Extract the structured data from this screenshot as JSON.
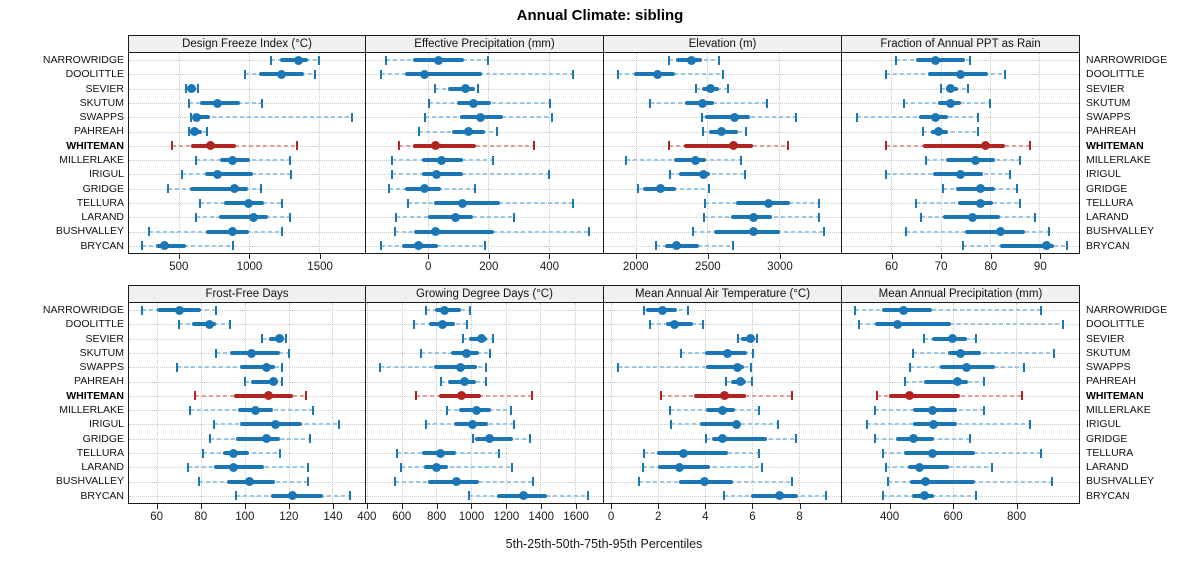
{
  "title": "Annual Climate: sibling",
  "footer": "5th-25th-50th-75th-95th Percentiles",
  "colors": {
    "blue": "#1b76b5",
    "blue_light": "#9ac7e3",
    "red": "#b22422",
    "red_light": "#dda09b",
    "grid": "#c9c9c9",
    "strip_bg": "#f0f0f0",
    "panel_border": "#1a1a1a"
  },
  "sites": [
    "NARROWRIDGE",
    "DOOLITTLE",
    "SEVIER",
    "SKUTUM",
    "SWAPPS",
    "PAHREAH",
    "WHITEMAN",
    "MILLERLAKE",
    "IRIGUL",
    "GRIDGE",
    "TELLURA",
    "LARAND",
    "BUSHVALLEY",
    "BRYCAN"
  ],
  "highlight_site": "WHITEMAN",
  "chart_data": {
    "type": "dotplot-percentiles",
    "percentile_labels": [
      "5th",
      "25th",
      "50th",
      "75th",
      "95th"
    ],
    "legend_note": "thin dashed line = 5th-95th, thick bar = 25th-75th, dot = 50th",
    "panels": [
      {
        "title": "Design Freeze Index (°C)",
        "grid_row": 0,
        "xlim": [
          140,
          1825
        ],
        "ticks": [
          500,
          1000,
          1500
        ],
        "values": {
          "NARROWRIDGE": [
            1155,
            1220,
            1350,
            1420,
            1500
          ],
          "DOOLITTLE": [
            965,
            1070,
            1230,
            1390,
            1470
          ],
          "SEVIER": [
            550,
            565,
            585,
            620,
            635
          ],
          "SKUTUM": [
            570,
            645,
            770,
            930,
            1090
          ],
          "SWAPPS": [
            580,
            610,
            625,
            715,
            1730
          ],
          "PAHREAH": [
            565,
            575,
            605,
            660,
            695
          ],
          "WHITEMAN": [
            445,
            585,
            720,
            905,
            1340
          ],
          "MILLERLAKE": [
            620,
            790,
            880,
            1005,
            1290
          ],
          "IRIGUL": [
            515,
            680,
            775,
            1025,
            1295
          ],
          "GRIDGE": [
            420,
            575,
            895,
            990,
            1080
          ],
          "TELLURA": [
            650,
            815,
            995,
            1105,
            1235
          ],
          "LARAND": [
            615,
            785,
            1030,
            1130,
            1290
          ],
          "BUSHVALLEY": [
            280,
            690,
            880,
            1000,
            1230
          ],
          "BRYCAN": [
            235,
            330,
            390,
            550,
            880
          ]
        }
      },
      {
        "title": "Effective Precipitation (mm)",
        "grid_row": 0,
        "xlim": [
          -205,
          580
        ],
        "ticks": [
          0,
          200,
          400
        ],
        "values": {
          "NARROWRIDGE": [
            -140,
            -50,
            35,
            120,
            200
          ],
          "DOOLITTLE": [
            -155,
            -75,
            -10,
            180,
            480
          ],
          "SEVIER": [
            25,
            65,
            125,
            155,
            165
          ],
          "SKUTUM": [
            5,
            95,
            150,
            210,
            405
          ],
          "SWAPPS": [
            -10,
            105,
            175,
            250,
            410
          ],
          "PAHREAH": [
            -30,
            80,
            135,
            190,
            230
          ],
          "WHITEMAN": [
            -95,
            -50,
            25,
            160,
            350
          ],
          "MILLERLAKE": [
            -120,
            -20,
            45,
            115,
            215
          ],
          "IRIGUL": [
            -120,
            -20,
            30,
            115,
            400
          ],
          "GRIDGE": [
            -130,
            -75,
            -10,
            45,
            155
          ],
          "TELLURA": [
            -65,
            20,
            115,
            240,
            480
          ],
          "LARAND": [
            -105,
            0,
            90,
            150,
            285
          ],
          "BUSHVALLEY": [
            -110,
            -45,
            25,
            220,
            535
          ],
          "BRYCAN": [
            -155,
            -85,
            -30,
            35,
            190
          ]
        }
      },
      {
        "title": "Elevation (m)",
        "grid_row": 0,
        "xlim": [
          1780,
          3430
        ],
        "ticks": [
          2000,
          2500,
          3000
        ],
        "values": {
          "NARROWRIDGE": [
            2230,
            2280,
            2390,
            2465,
            2580
          ],
          "DOOLITTLE": [
            1875,
            1990,
            2150,
            2275,
            2610
          ],
          "SEVIER": [
            2420,
            2465,
            2520,
            2580,
            2645
          ],
          "SKUTUM": [
            2100,
            2345,
            2465,
            2545,
            2915
          ],
          "SWAPPS": [
            2465,
            2485,
            2690,
            2795,
            3115
          ],
          "PAHREAH": [
            2470,
            2510,
            2600,
            2715,
            2770
          ],
          "WHITEMAN": [
            2230,
            2335,
            2680,
            2820,
            3060
          ],
          "MILLERLAKE": [
            1935,
            2270,
            2415,
            2490,
            2735
          ],
          "IRIGUL": [
            2240,
            2305,
            2475,
            2515,
            2760
          ],
          "GRIDGE": [
            2015,
            2050,
            2175,
            2280,
            2510
          ],
          "TELLURA": [
            2485,
            2700,
            2925,
            3075,
            3280
          ],
          "LARAND": [
            2475,
            2665,
            2820,
            2950,
            3275
          ],
          "BUSHVALLEY": [
            2400,
            2545,
            2820,
            3005,
            3315
          ],
          "BRYCAN": [
            2140,
            2205,
            2285,
            2440,
            2680
          ]
        }
      },
      {
        "title": "Fraction of Annual PPT as Rain",
        "grid_row": 0,
        "xlim": [
          50,
          98
        ],
        "ticks": [
          60,
          70,
          80,
          90
        ],
        "values": {
          "NARROWRIDGE": [
            61,
            65,
            69,
            75,
            76
          ],
          "DOOLITTLE": [
            59,
            67.5,
            74,
            79.5,
            83
          ],
          "SEVIER": [
            70,
            71,
            72,
            73.5,
            75.5
          ],
          "SKUTUM": [
            62.5,
            69.5,
            72,
            74,
            80
          ],
          "SWAPPS": [
            53,
            65.5,
            69,
            71.5,
            77.5
          ],
          "PAHREAH": [
            66.5,
            68,
            69.5,
            71.5,
            77.5
          ],
          "WHITEMAN": [
            59,
            66.5,
            79,
            83,
            88
          ],
          "MILLERLAKE": [
            67,
            71,
            77,
            81,
            86
          ],
          "IRIGUL": [
            59,
            68.5,
            74,
            78.5,
            84
          ],
          "GRIDGE": [
            70.5,
            73,
            78,
            81,
            85.5
          ],
          "TELLURA": [
            65,
            73.5,
            78,
            80.5,
            86
          ],
          "LARAND": [
            66,
            70.5,
            76.5,
            82,
            89
          ],
          "BUSHVALLEY": [
            63,
            75,
            82,
            87,
            92
          ],
          "BRYCAN": [
            74.5,
            82,
            91.5,
            93,
            95.5
          ]
        }
      },
      {
        "title": "Frost-Free Days",
        "grid_row": 1,
        "xlim": [
          47,
          155
        ],
        "ticks": [
          60,
          80,
          100,
          120,
          140
        ],
        "values": {
          "NARROWRIDGE": [
            53,
            60,
            70,
            80,
            87
          ],
          "DOOLITTLE": [
            70,
            76,
            84,
            87,
            93
          ],
          "SEVIER": [
            108,
            111,
            116,
            118,
            119
          ],
          "SKUTUM": [
            87,
            93,
            103,
            116,
            120
          ],
          "SWAPPS": [
            69,
            98,
            110,
            114,
            117
          ],
          "PAHREAH": [
            100,
            103,
            113,
            115,
            117
          ],
          "WHITEMAN": [
            77,
            95,
            111,
            122,
            128
          ],
          "MILLERLAKE": [
            75,
            97,
            105,
            113,
            131
          ],
          "IRIGUL": [
            86,
            98,
            114,
            126,
            143
          ],
          "GRIDGE": [
            84,
            96,
            110,
            116,
            130
          ],
          "TELLURA": [
            81,
            90,
            95,
            102,
            116
          ],
          "LARAND": [
            74,
            86,
            95,
            109,
            129
          ],
          "BUSHVALLEY": [
            79,
            92,
            102,
            114,
            129
          ],
          "BRYCAN": [
            96,
            112,
            122,
            136,
            148
          ]
        }
      },
      {
        "title": "Growing Degree Days (°C)",
        "grid_row": 1,
        "xlim": [
          395,
          1760
        ],
        "ticks": [
          400,
          600,
          800,
          1000,
          1200,
          1400,
          1600
        ],
        "values": {
          "NARROWRIDGE": [
            740,
            795,
            850,
            940,
            995
          ],
          "DOOLITTLE": [
            670,
            755,
            835,
            905,
            975
          ],
          "SEVIER": [
            955,
            990,
            1060,
            1090,
            1125
          ],
          "SKUTUM": [
            710,
            885,
            975,
            1045,
            1110
          ],
          "SWAPPS": [
            475,
            785,
            940,
            1035,
            1085
          ],
          "PAHREAH": [
            825,
            870,
            965,
            1030,
            1085
          ],
          "WHITEMAN": [
            685,
            815,
            945,
            1060,
            1350
          ],
          "MILLERLAKE": [
            860,
            930,
            1030,
            1115,
            1230
          ],
          "IRIGUL": [
            740,
            900,
            1010,
            1100,
            1250
          ],
          "GRIDGE": [
            1010,
            1020,
            1105,
            1240,
            1340
          ],
          "TELLURA": [
            575,
            720,
            825,
            915,
            1160
          ],
          "LARAND": [
            595,
            730,
            800,
            865,
            1235
          ],
          "BUSHVALLEY": [
            560,
            750,
            915,
            1045,
            1355
          ],
          "BRYCAN": [
            990,
            1150,
            1300,
            1440,
            1675
          ]
        }
      },
      {
        "title": "Mean Annual Air Temperature (°C)",
        "grid_row": 1,
        "xlim": [
          -0.3,
          9.8
        ],
        "ticks": [
          0,
          2,
          4,
          6,
          8
        ],
        "values": {
          "NARROWRIDGE": [
            1.4,
            1.5,
            2.2,
            2.8,
            3.3
          ],
          "DOOLITTLE": [
            1.65,
            2.35,
            2.7,
            3.5,
            3.9
          ],
          "SEVIER": [
            5.4,
            5.55,
            5.95,
            6.1,
            6.2
          ],
          "SKUTUM": [
            3.0,
            4.0,
            4.95,
            5.8,
            6.05
          ],
          "SWAPPS": [
            0.3,
            4.05,
            5.4,
            5.65,
            5.95
          ],
          "PAHREAH": [
            4.9,
            5.1,
            5.5,
            5.75,
            6.0
          ],
          "WHITEMAN": [
            2.15,
            3.55,
            4.85,
            5.75,
            7.7
          ],
          "MILLERLAKE": [
            2.5,
            4.05,
            4.75,
            5.3,
            6.3
          ],
          "IRIGUL": [
            2.55,
            3.8,
            5.35,
            5.5,
            7.1
          ],
          "GRIDGE": [
            4.05,
            4.3,
            4.75,
            6.65,
            7.9
          ],
          "TELLURA": [
            1.4,
            1.95,
            3.1,
            5.0,
            6.3
          ],
          "LARAND": [
            1.35,
            2.0,
            2.9,
            4.2,
            6.45
          ],
          "BUSHVALLEY": [
            1.2,
            2.9,
            4.0,
            5.2,
            7.7
          ],
          "BRYCAN": [
            4.8,
            5.95,
            7.2,
            7.95,
            9.15
          ]
        }
      },
      {
        "title": "Mean Annual Precipitation (mm)",
        "grid_row": 1,
        "xlim": [
          250,
          1000
        ],
        "ticks": [
          400,
          600,
          800
        ],
        "values": {
          "NARROWRIDGE": [
            290,
            375,
            445,
            535,
            880
          ],
          "DOOLITTLE": [
            305,
            355,
            425,
            595,
            950
          ],
          "SEVIER": [
            510,
            535,
            600,
            645,
            675
          ],
          "SKUTUM": [
            475,
            585,
            625,
            690,
            920
          ],
          "SWAPPS": [
            465,
            560,
            645,
            735,
            825
          ],
          "PAHREAH": [
            450,
            510,
            615,
            650,
            700
          ],
          "WHITEMAN": [
            360,
            400,
            465,
            625,
            820
          ],
          "MILLERLAKE": [
            355,
            475,
            535,
            615,
            700
          ],
          "IRIGUL": [
            330,
            475,
            540,
            615,
            845
          ],
          "GRIDGE": [
            355,
            420,
            475,
            540,
            655
          ],
          "TELLURA": [
            380,
            445,
            535,
            670,
            880
          ],
          "LARAND": [
            390,
            460,
            495,
            590,
            725
          ],
          "BUSHVALLEY": [
            395,
            465,
            515,
            670,
            915
          ],
          "BRYCAN": [
            380,
            470,
            510,
            540,
            675
          ]
        }
      }
    ]
  }
}
